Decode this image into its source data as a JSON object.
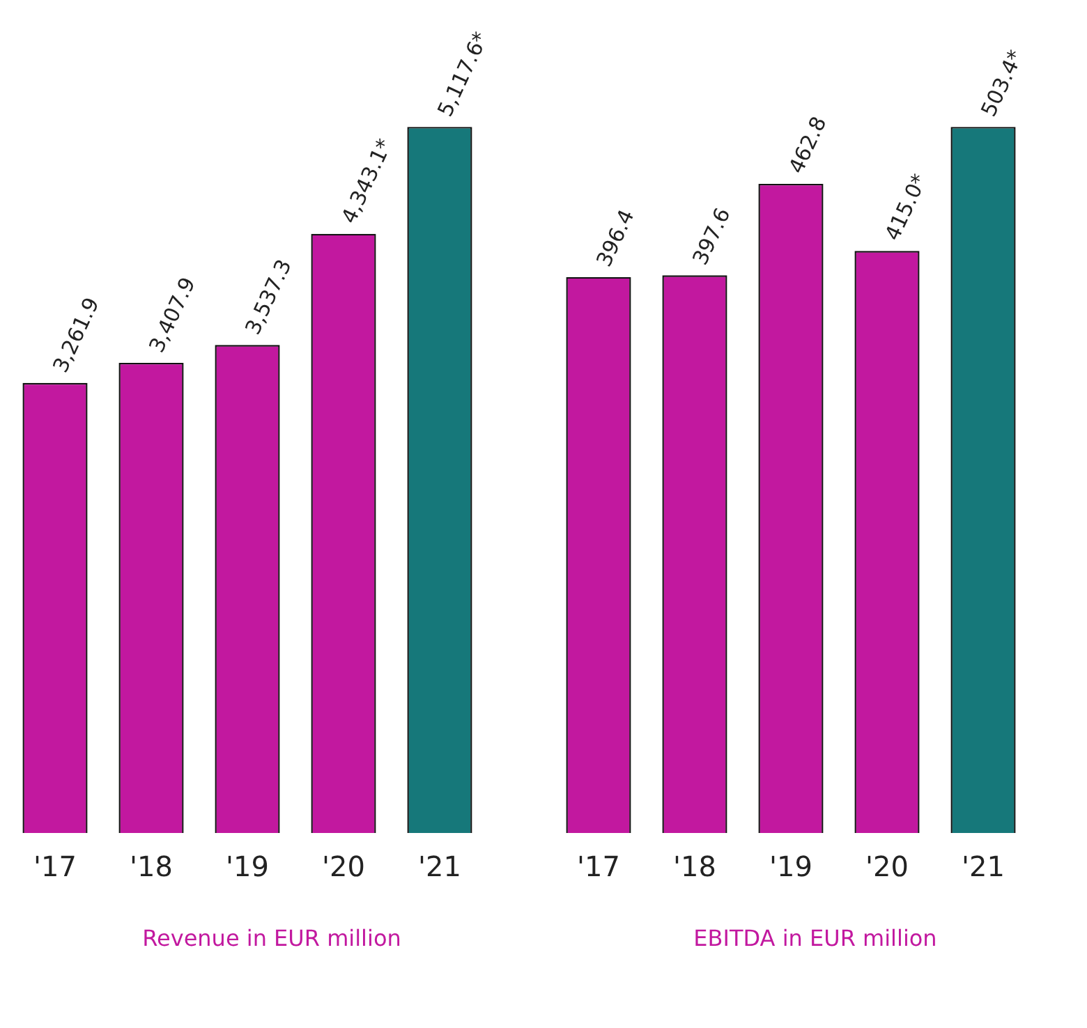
{
  "chart_data": [
    {
      "type": "bar",
      "title": "Revenue in EUR million",
      "categories": [
        "'17",
        "'18",
        "'19",
        "'20",
        "'21"
      ],
      "values": [
        3261.9,
        3407.9,
        3537.3,
        4343.1,
        5117.6
      ],
      "colors": [
        "#c2189f",
        "#c2189f",
        "#c2189f",
        "#c2189f",
        "#16787a"
      ],
      "value_labels": [
        "3,261.9",
        "3,407.9",
        "3,537.3",
        "4,343.1*",
        "5,117.6*"
      ],
      "tick_labels": "x",
      "grid": false,
      "legend": false
    },
    {
      "type": "bar",
      "title": "EBITDA in EUR million",
      "categories": [
        "'17",
        "'18",
        "'19",
        "'20",
        "'21"
      ],
      "values": [
        396.4,
        397.6,
        462.8,
        415.0,
        503.4
      ],
      "colors": [
        "#c2189f",
        "#c2189f",
        "#c2189f",
        "#c2189f",
        "#16787a"
      ],
      "value_labels": [
        "396.4",
        "397.6",
        "462.8",
        "415.0*",
        "503.4*"
      ],
      "tick_labels": "x",
      "grid": false,
      "legend": false
    }
  ]
}
